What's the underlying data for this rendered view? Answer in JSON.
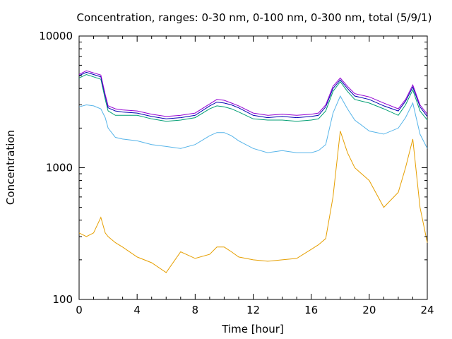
{
  "chart_data": {
    "type": "line",
    "title": "Concentration, ranges: 0-30 nm, 0-100 nm, 0-300 nm, total (5/9/1)",
    "xlabel": "Time [hour]",
    "ylabel": "Concentration",
    "xlim": [
      0,
      24
    ],
    "ylim": [
      100,
      10000
    ],
    "yscale": "log",
    "grid": false,
    "legend": "none",
    "x_ticks": [
      {
        "value": 0,
        "label": "0"
      },
      {
        "value": 4,
        "label": "4"
      },
      {
        "value": 8,
        "label": "8"
      },
      {
        "value": 12,
        "label": "12"
      },
      {
        "value": 16,
        "label": "16"
      },
      {
        "value": 20,
        "label": "20"
      },
      {
        "value": 24,
        "label": "24"
      }
    ],
    "y_ticks": [
      {
        "value": 100,
        "label": "100"
      },
      {
        "value": 1000,
        "label": "1000"
      },
      {
        "value": 10000,
        "label": "10000"
      }
    ],
    "x": [
      0,
      0.5,
      1,
      1.5,
      1.8,
      2,
      2.5,
      3,
      4,
      5,
      6,
      7,
      8,
      9,
      9.5,
      10,
      10.5,
      11,
      12,
      13,
      14,
      15,
      16,
      16.5,
      17,
      17.5,
      18,
      18.5,
      19,
      20,
      21,
      22,
      22.5,
      23,
      23.5,
      24
    ],
    "series": [
      {
        "color": "#e69f00",
        "values": [
          320,
          300,
          320,
          420,
          320,
          300,
          270,
          250,
          210,
          190,
          160,
          230,
          205,
          220,
          250,
          250,
          230,
          210,
          200,
          195,
          200,
          205,
          240,
          260,
          290,
          600,
          1900,
          1300,
          1000,
          800,
          500,
          650,
          1000,
          1650,
          500,
          270
        ]
      },
      {
        "color": "#56b4e9",
        "values": [
          2900,
          3000,
          2950,
          2800,
          2400,
          2000,
          1700,
          1650,
          1600,
          1500,
          1450,
          1400,
          1500,
          1750,
          1850,
          1850,
          1750,
          1600,
          1400,
          1300,
          1350,
          1300,
          1300,
          1350,
          1500,
          2600,
          3500,
          2800,
          2300,
          1900,
          1800,
          2000,
          2400,
          3100,
          1800,
          1400
        ]
      },
      {
        "color": "#009e73",
        "values": [
          4800,
          5100,
          4900,
          4700,
          3300,
          2700,
          2500,
          2500,
          2500,
          2350,
          2250,
          2300,
          2400,
          2800,
          2950,
          2900,
          2800,
          2650,
          2350,
          2300,
          2300,
          2250,
          2300,
          2350,
          2700,
          3800,
          4500,
          3800,
          3300,
          3100,
          2800,
          2500,
          3000,
          3900,
          2700,
          2300
        ]
      },
      {
        "color": "#0000b2",
        "values": [
          5000,
          5300,
          5100,
          4900,
          3500,
          2850,
          2700,
          2650,
          2600,
          2450,
          2350,
          2400,
          2500,
          2950,
          3150,
          3100,
          3000,
          2850,
          2500,
          2400,
          2450,
          2400,
          2450,
          2500,
          2900,
          4000,
          4650,
          4000,
          3500,
          3300,
          2950,
          2700,
          3200,
          4100,
          2900,
          2450
        ]
      },
      {
        "color": "#9400d3",
        "values": [
          5100,
          5450,
          5250,
          5050,
          3600,
          2950,
          2800,
          2750,
          2700,
          2550,
          2450,
          2500,
          2600,
          3050,
          3300,
          3250,
          3100,
          2950,
          2600,
          2500,
          2550,
          2500,
          2550,
          2600,
          3000,
          4150,
          4800,
          4150,
          3650,
          3450,
          3100,
          2800,
          3300,
          4250,
          3000,
          2550
        ]
      }
    ]
  }
}
